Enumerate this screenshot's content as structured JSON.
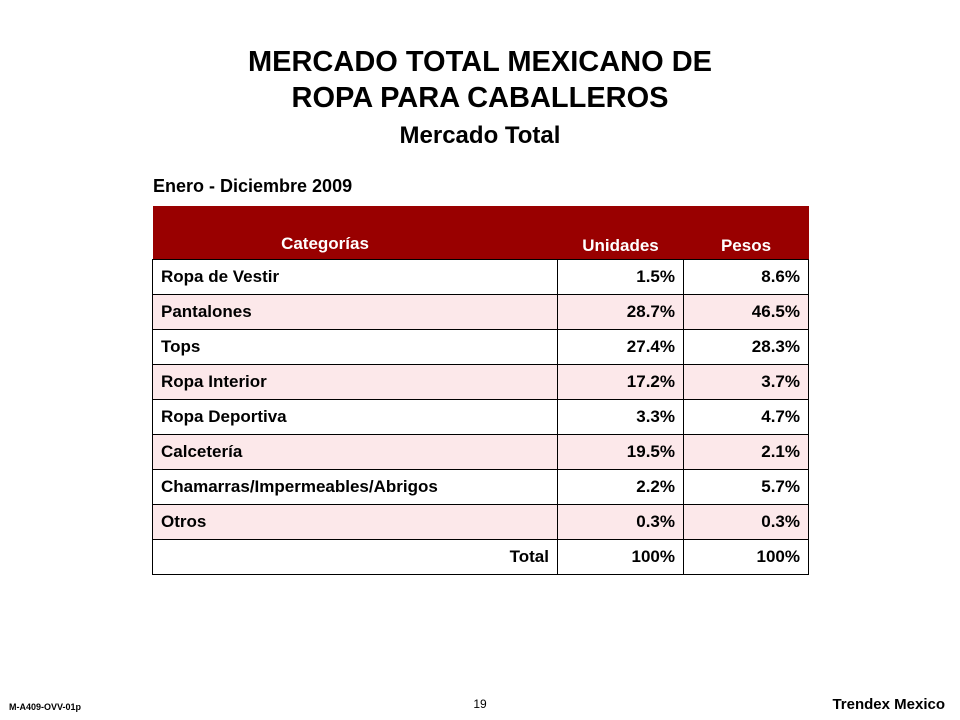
{
  "title_line1": "MERCADO TOTAL MEXICANO DE",
  "title_line2": "ROPA PARA CABALLEROS",
  "subtitle": "Mercado Total",
  "period": "Enero - Diciembre 2009",
  "table": {
    "headers": [
      "Categorías",
      "Unidades",
      "Pesos"
    ],
    "rows": [
      {
        "category": "Ropa de Vestir",
        "unidades": "1.5%",
        "pesos": "8.6%"
      },
      {
        "category": "Pantalones",
        "unidades": "28.7%",
        "pesos": "46.5%"
      },
      {
        "category": "Tops",
        "unidades": "27.4%",
        "pesos": "28.3%"
      },
      {
        "category": "Ropa Interior",
        "unidades": "17.2%",
        "pesos": "3.7%"
      },
      {
        "category": "Ropa Deportiva",
        "unidades": "3.3%",
        "pesos": "4.7%"
      },
      {
        "category": "Calcetería",
        "unidades": "19.5%",
        "pesos": "2.1%"
      },
      {
        "category": "Chamarras/Impermeables/Abrigos",
        "unidades": "2.2%",
        "pesos": "5.7%"
      },
      {
        "category": "Otros",
        "unidades": "0.3%",
        "pesos": "0.3%"
      }
    ],
    "total": {
      "label": "Total",
      "unidades": "100%",
      "pesos": "100%"
    }
  },
  "footer": {
    "code": "M-A409-OVV-01p",
    "page_number": "19",
    "brand": "Trendex Mexico"
  },
  "colors": {
    "header_bg": "#990000",
    "stripe_bg": "#fce8ea"
  }
}
